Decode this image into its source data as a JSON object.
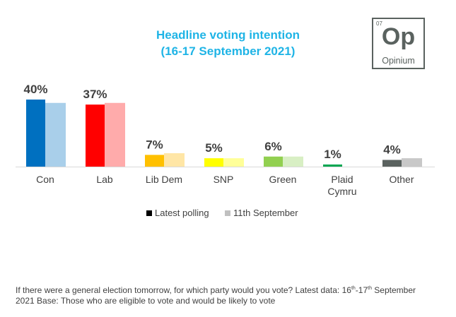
{
  "chart_data": {
    "type": "bar",
    "title": "Headline voting intention",
    "subtitle": "(16-17 September 2021)",
    "categories": [
      "Con",
      "Lab",
      "Lib Dem",
      "SNP",
      "Green",
      "Plaid Cymru",
      "Other"
    ],
    "series": [
      {
        "name": "Latest polling",
        "values": [
          40,
          37,
          7,
          5,
          6,
          1,
          4
        ],
        "colors": [
          "#0070c0",
          "#ff0000",
          "#ffc000",
          "#ffff00",
          "#92d050",
          "#00a651",
          "#5a625f"
        ],
        "legend_color": "#000000"
      },
      {
        "name": "11th September",
        "values": [
          38,
          38,
          8,
          5,
          6,
          0,
          5
        ],
        "colors": [
          "#a9cfea",
          "#ffabab",
          "#ffe6a6",
          "#ffff99",
          "#d8efc4",
          "#99dbb9",
          "#c8c8c8"
        ],
        "legend_color": "#c0c0c0"
      }
    ],
    "data_labels": [
      "40%",
      "37%",
      "7%",
      "5%",
      "6%",
      "1%",
      "4%"
    ],
    "ylim": [
      0,
      45
    ],
    "grid": false,
    "legend": "bottom"
  },
  "logo": {
    "number": "07",
    "symbol": "Op",
    "name": "Opinium"
  },
  "footnote": {
    "line1_a": "If there were a general election tomorrow, for which party would you vote? Latest data: 16",
    "sup1": "th",
    "mid": "-17",
    "sup2": "th",
    "line1_b": " September",
    "line2": "2021 Base: Those who are eligible  to vote and would be likely to vote"
  }
}
